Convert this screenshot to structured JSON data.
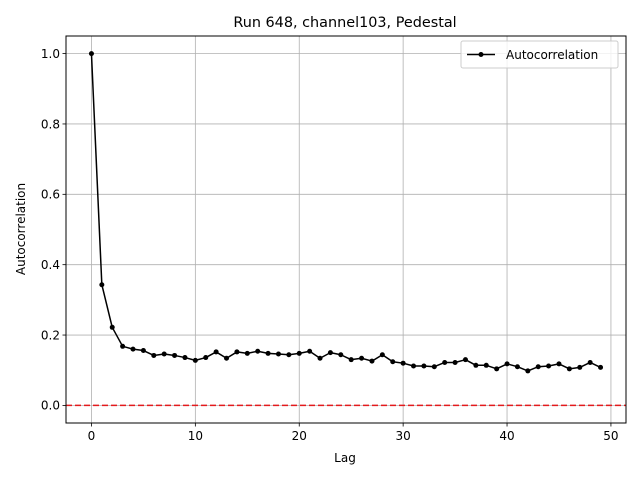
{
  "chart_data": {
    "type": "line",
    "title": "Run 648, channel103, Pedestal",
    "xlabel": "Lag",
    "ylabel": "Autocorrelation",
    "xlim": [
      -2.45,
      51.45
    ],
    "ylim": [
      -0.05,
      1.05
    ],
    "xticks": [
      0,
      10,
      20,
      30,
      40,
      50
    ],
    "yticks": [
      0.0,
      0.2,
      0.4,
      0.6,
      0.8,
      1.0
    ],
    "grid": true,
    "legend": {
      "position": "top-right"
    },
    "series": [
      {
        "name": "Autocorrelation",
        "color": "#000000",
        "marker": "circle",
        "x": [
          0,
          1,
          2,
          3,
          4,
          5,
          6,
          7,
          8,
          9,
          10,
          11,
          12,
          13,
          14,
          15,
          16,
          17,
          18,
          19,
          20,
          21,
          22,
          23,
          24,
          25,
          26,
          27,
          28,
          29,
          30,
          31,
          32,
          33,
          34,
          35,
          36,
          37,
          38,
          39,
          40,
          41,
          42,
          43,
          44,
          45,
          46,
          47,
          48,
          49
        ],
        "y": [
          1.0,
          0.343,
          0.222,
          0.168,
          0.16,
          0.156,
          0.142,
          0.146,
          0.142,
          0.136,
          0.128,
          0.136,
          0.152,
          0.134,
          0.152,
          0.148,
          0.154,
          0.148,
          0.146,
          0.144,
          0.148,
          0.154,
          0.134,
          0.15,
          0.144,
          0.13,
          0.134,
          0.126,
          0.144,
          0.124,
          0.12,
          0.112,
          0.112,
          0.11,
          0.122,
          0.122,
          0.13,
          0.114,
          0.114,
          0.104,
          0.118,
          0.11,
          0.098,
          0.11,
          0.112,
          0.118,
          0.104,
          0.108,
          0.122,
          0.108
        ]
      }
    ],
    "reference_line": {
      "y": 0,
      "color": "#e31a1c",
      "style": "dashed"
    }
  }
}
